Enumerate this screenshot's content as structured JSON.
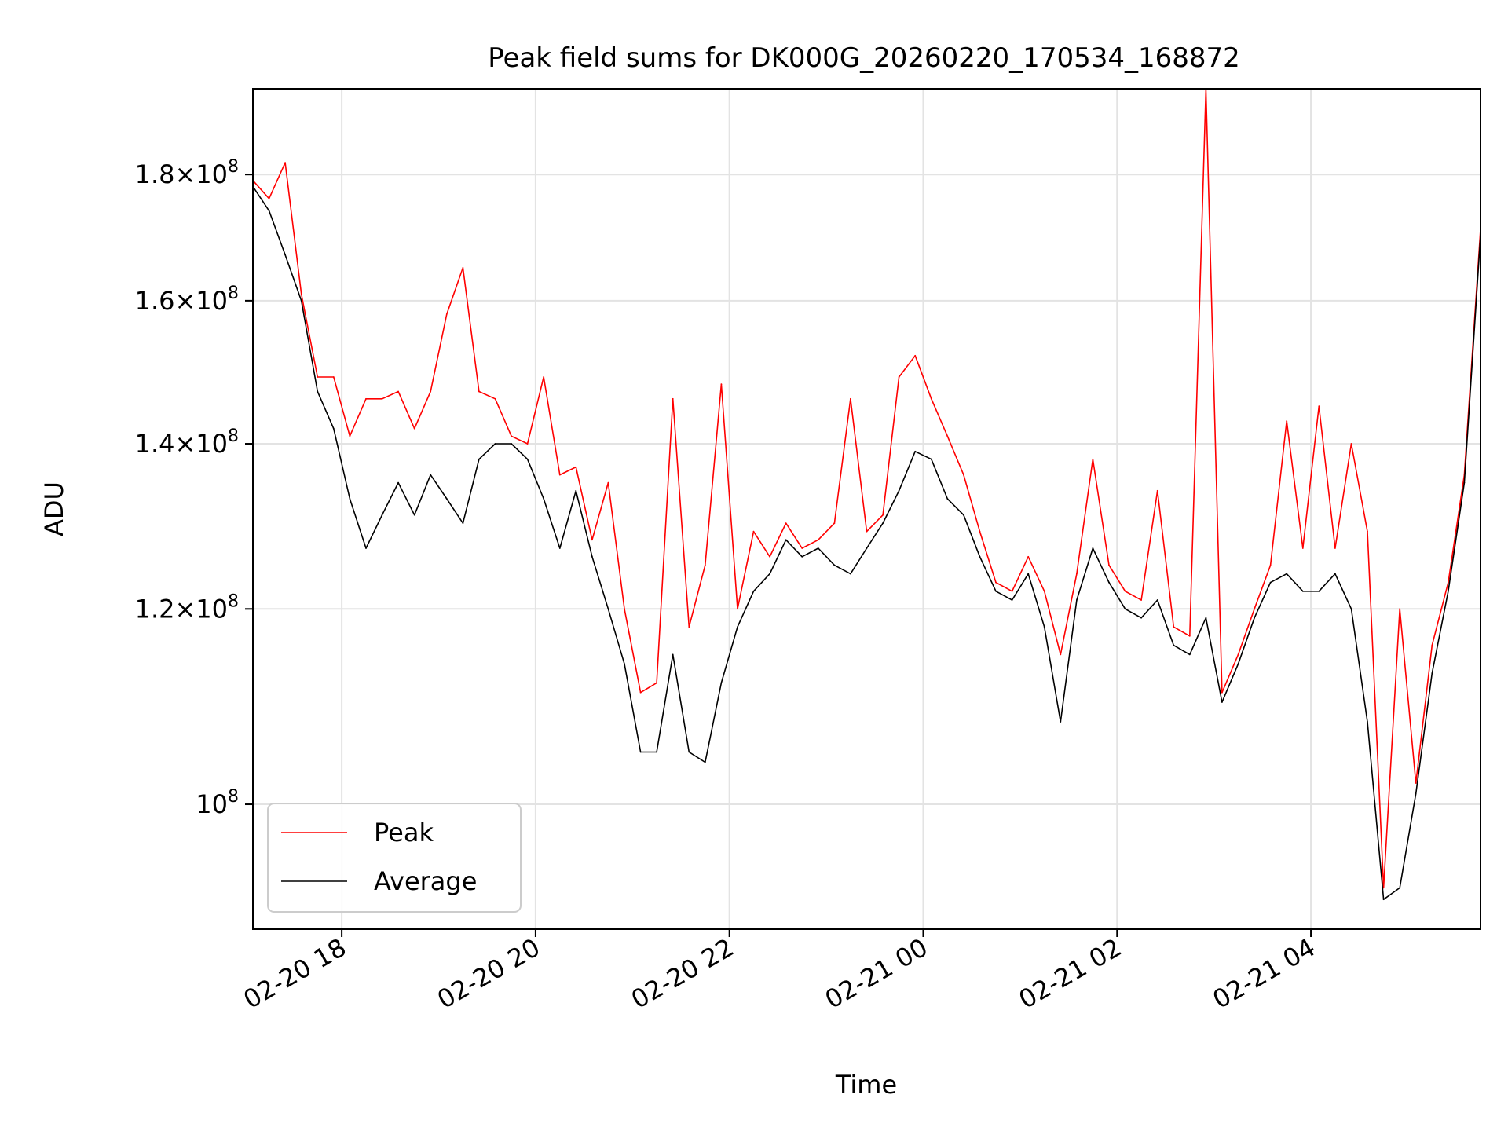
{
  "chart_data": {
    "type": "line",
    "title": "Peak field sums for DK000G_20260220_170534_168872",
    "xlabel": "Time",
    "ylabel": "ADU",
    "yscale": "log",
    "grid": true,
    "legend_position": "lower-left",
    "xlim": [
      "2026-02-20 17:05",
      "2026-02-21 05:45"
    ],
    "ylim": [
      89000000,
      195000000
    ],
    "x_ticks": [
      {
        "value": "2026-02-20 18:00",
        "label": "02-20 18"
      },
      {
        "value": "2026-02-20 20:00",
        "label": "02-20 20"
      },
      {
        "value": "2026-02-20 22:00",
        "label": "02-20 22"
      },
      {
        "value": "2026-02-21 00:00",
        "label": "02-21 00"
      },
      {
        "value": "2026-02-21 02:00",
        "label": "02-21 02"
      },
      {
        "value": "2026-02-21 04:00",
        "label": "02-21 04"
      }
    ],
    "y_ticks": [
      {
        "value": 100000000,
        "base": "10",
        "exp": "8"
      },
      {
        "value": 120000000,
        "mantissa": "1.2",
        "base": "10",
        "exp": "8"
      },
      {
        "value": 140000000,
        "mantissa": "1.4",
        "base": "10",
        "exp": "8"
      },
      {
        "value": 160000000,
        "mantissa": "1.6",
        "base": "10",
        "exp": "8"
      },
      {
        "value": 180000000,
        "mantissa": "1.8",
        "base": "10",
        "exp": "8"
      }
    ],
    "series": [
      {
        "name": "Average",
        "color": "#000000",
        "x": [
          "2026-02-20 17:05",
          "2026-02-20 17:15",
          "2026-02-20 17:25",
          "2026-02-20 17:35",
          "2026-02-20 17:45",
          "2026-02-20 17:55",
          "2026-02-20 18:05",
          "2026-02-20 18:15",
          "2026-02-20 18:25",
          "2026-02-20 18:35",
          "2026-02-20 18:45",
          "2026-02-20 18:55",
          "2026-02-20 19:05",
          "2026-02-20 19:15",
          "2026-02-20 19:25",
          "2026-02-20 19:35",
          "2026-02-20 19:45",
          "2026-02-20 19:55",
          "2026-02-20 20:05",
          "2026-02-20 20:15",
          "2026-02-20 20:25",
          "2026-02-20 20:35",
          "2026-02-20 20:45",
          "2026-02-20 20:55",
          "2026-02-20 21:05",
          "2026-02-20 21:15",
          "2026-02-20 21:25",
          "2026-02-20 21:35",
          "2026-02-20 21:45",
          "2026-02-20 21:55",
          "2026-02-20 22:05",
          "2026-02-20 22:15",
          "2026-02-20 22:25",
          "2026-02-20 22:35",
          "2026-02-20 22:45",
          "2026-02-20 22:55",
          "2026-02-20 23:05",
          "2026-02-20 23:15",
          "2026-02-20 23:25",
          "2026-02-20 23:35",
          "2026-02-20 23:45",
          "2026-02-20 23:55",
          "2026-02-21 00:05",
          "2026-02-21 00:15",
          "2026-02-21 00:25",
          "2026-02-21 00:35",
          "2026-02-21 00:45",
          "2026-02-21 00:55",
          "2026-02-21 01:05",
          "2026-02-21 01:15",
          "2026-02-21 01:25",
          "2026-02-21 01:35",
          "2026-02-21 01:45",
          "2026-02-21 01:55",
          "2026-02-21 02:05",
          "2026-02-21 02:15",
          "2026-02-21 02:25",
          "2026-02-21 02:35",
          "2026-02-21 02:45",
          "2026-02-21 02:55",
          "2026-02-21 03:05",
          "2026-02-21 03:15",
          "2026-02-21 03:25",
          "2026-02-21 03:35",
          "2026-02-21 03:45",
          "2026-02-21 03:55",
          "2026-02-21 04:05",
          "2026-02-21 04:15",
          "2026-02-21 04:25",
          "2026-02-21 04:35",
          "2026-02-21 04:45",
          "2026-02-21 04:55",
          "2026-02-21 05:05",
          "2026-02-21 05:15",
          "2026-02-21 05:25",
          "2026-02-21 05:35",
          "2026-02-21 05:45"
        ],
        "values": [
          178000000,
          174000000,
          167000000,
          160000000,
          147000000,
          142000000,
          133000000,
          127000000,
          131000000,
          135000000,
          131000000,
          136000000,
          133000000,
          130000000,
          138000000,
          140000000,
          140000000,
          138000000,
          133000000,
          127000000,
          134000000,
          126000000,
          120000000,
          114000000,
          105000000,
          105000000,
          115000000,
          105000000,
          104000000,
          112000000,
          118000000,
          122000000,
          124000000,
          128000000,
          126000000,
          127000000,
          125000000,
          124000000,
          127000000,
          130000000,
          134000000,
          139000000,
          138000000,
          133000000,
          131000000,
          126000000,
          122000000,
          121000000,
          124000000,
          118000000,
          108000000,
          121000000,
          127000000,
          123000000,
          120000000,
          119000000,
          121000000,
          116000000,
          115000000,
          119000000,
          110000000,
          114000000,
          119000000,
          123000000,
          124000000,
          122000000,
          122000000,
          124000000,
          120000000,
          108000000,
          91500000,
          92500000,
          101000000,
          113000000,
          122000000,
          135000000,
          170000000
        ]
      },
      {
        "name": "Peak",
        "color": "#ff0000",
        "x": [
          "2026-02-20 17:05",
          "2026-02-20 17:15",
          "2026-02-20 17:25",
          "2026-02-20 17:35",
          "2026-02-20 17:45",
          "2026-02-20 17:55",
          "2026-02-20 18:05",
          "2026-02-20 18:15",
          "2026-02-20 18:25",
          "2026-02-20 18:35",
          "2026-02-20 18:45",
          "2026-02-20 18:55",
          "2026-02-20 19:05",
          "2026-02-20 19:15",
          "2026-02-20 19:25",
          "2026-02-20 19:35",
          "2026-02-20 19:45",
          "2026-02-20 19:55",
          "2026-02-20 20:05",
          "2026-02-20 20:15",
          "2026-02-20 20:25",
          "2026-02-20 20:35",
          "2026-02-20 20:45",
          "2026-02-20 20:55",
          "2026-02-20 21:05",
          "2026-02-20 21:15",
          "2026-02-20 21:25",
          "2026-02-20 21:35",
          "2026-02-20 21:45",
          "2026-02-20 21:55",
          "2026-02-20 22:05",
          "2026-02-20 22:15",
          "2026-02-20 22:25",
          "2026-02-20 22:35",
          "2026-02-20 22:45",
          "2026-02-20 22:55",
          "2026-02-20 23:05",
          "2026-02-20 23:15",
          "2026-02-20 23:25",
          "2026-02-20 23:35",
          "2026-02-20 23:45",
          "2026-02-20 23:55",
          "2026-02-21 00:05",
          "2026-02-21 00:15",
          "2026-02-21 00:25",
          "2026-02-21 00:35",
          "2026-02-21 00:45",
          "2026-02-21 00:55",
          "2026-02-21 01:05",
          "2026-02-21 01:15",
          "2026-02-21 01:25",
          "2026-02-21 01:35",
          "2026-02-21 01:45",
          "2026-02-21 01:55",
          "2026-02-21 02:05",
          "2026-02-21 02:15",
          "2026-02-21 02:25",
          "2026-02-21 02:35",
          "2026-02-21 02:45",
          "2026-02-21 02:55",
          "2026-02-21 03:05",
          "2026-02-21 03:15",
          "2026-02-21 03:25",
          "2026-02-21 03:35",
          "2026-02-21 03:45",
          "2026-02-21 03:55",
          "2026-02-21 04:05",
          "2026-02-21 04:15",
          "2026-02-21 04:25",
          "2026-02-21 04:35",
          "2026-02-21 04:45",
          "2026-02-21 04:55",
          "2026-02-21 05:05",
          "2026-02-21 05:15",
          "2026-02-21 05:25",
          "2026-02-21 05:35",
          "2026-02-21 05:45"
        ],
        "values": [
          179000000,
          176000000,
          182000000,
          161000000,
          149000000,
          149000000,
          141000000,
          146000000,
          146000000,
          147000000,
          142000000,
          147000000,
          158000000,
          165000000,
          147000000,
          146000000,
          141000000,
          140000000,
          149000000,
          136000000,
          137000000,
          128000000,
          135000000,
          120000000,
          111000000,
          112000000,
          146000000,
          118000000,
          125000000,
          148000000,
          120000000,
          129000000,
          126000000,
          130000000,
          127000000,
          128000000,
          130000000,
          146000000,
          129000000,
          131000000,
          149000000,
          152000000,
          146000000,
          141000000,
          136000000,
          129000000,
          123000000,
          122000000,
          126000000,
          122000000,
          115000000,
          124000000,
          138000000,
          125000000,
          122000000,
          121000000,
          134000000,
          118000000,
          117000000,
          195000000,
          111000000,
          115000000,
          120000000,
          125000000,
          143000000,
          127000000,
          145000000,
          127000000,
          140000000,
          129000000,
          92500000,
          120000000,
          102000000,
          116000000,
          123000000,
          136000000,
          171000000
        ]
      }
    ]
  }
}
